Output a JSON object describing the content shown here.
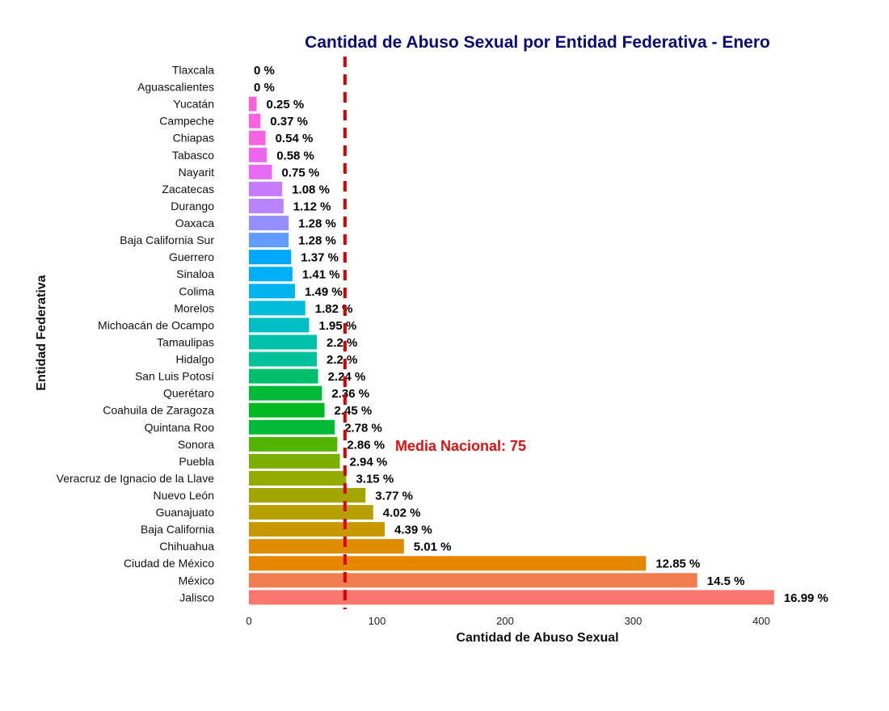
{
  "colors": {
    "title": "#0a0a7a",
    "mean_line": "#dd0000",
    "mean_text": "#dd1111"
  },
  "chart_data": {
    "type": "bar",
    "orientation": "horizontal",
    "title": "Cantidad de Abuso Sexual por Entidad Federativa - Enero",
    "xlabel": "Cantidad de Abuso Sexual",
    "ylabel": "Entidad Federativa",
    "xlim": [
      0,
      410
    ],
    "x_ticks": [
      0,
      100,
      200,
      300,
      400
    ],
    "grid": false,
    "legend": "none",
    "mean": {
      "value": 75,
      "label": "Media Nacional:  75"
    },
    "categories": [
      "Tlaxcala",
      "Aguascalientes",
      "Yucatán",
      "Campeche",
      "Chiapas",
      "Tabasco",
      "Nayarit",
      "Zacatecas",
      "Durango",
      "Oaxaca",
      "Baja California Sur",
      "Guerrero",
      "Sinaloa",
      "Colima",
      "Morelos",
      "Michoacán de Ocampo",
      "Tamaulipas",
      "Hidalgo",
      "San Luis Potosí",
      "Querétaro",
      "Coahuila de Zaragoza",
      "Quintana Roo",
      "Sonora",
      "Puebla",
      "Veracruz de Ignacio de la Llave",
      "Nuevo León",
      "Guanajuato",
      "Baja California",
      "Chihuahua",
      "Ciudad de México",
      "México",
      "Jalisco"
    ],
    "values": [
      0,
      0,
      6,
      9,
      13,
      14,
      18,
      26,
      27,
      31,
      31,
      33,
      34,
      36,
      44,
      47,
      53,
      53,
      54,
      57,
      59,
      67,
      69,
      71,
      76,
      91,
      97,
      106,
      121,
      310,
      350,
      410
    ],
    "labels": [
      "0 %",
      "0 %",
      "0.25 %",
      "0.37 %",
      "0.54 %",
      "0.58 %",
      "0.75 %",
      "1.08 %",
      "1.12 %",
      "1.28 %",
      "1.28 %",
      "1.37 %",
      "1.41 %",
      "1.49 %",
      "1.82 %",
      "1.95 %",
      "2.2 %",
      "2.2 %",
      "2.24 %",
      "2.36 %",
      "2.45 %",
      "2.78 %",
      "2.86 %",
      "2.94 %",
      "3.15 %",
      "3.77 %",
      "4.02 %",
      "4.39 %",
      "5.01 %",
      "12.85 %",
      "14.5 %",
      "16.99 %"
    ],
    "bar_colors": [
      "#FF64B0",
      "#FF64B0",
      "#FB61D7",
      "#F763E0",
      "#F564E3",
      "#EB66EC",
      "#E76BF3",
      "#C77CFF",
      "#B983FF",
      "#9590FF",
      "#619CFF",
      "#00A9FF",
      "#00B0F6",
      "#00B4F0",
      "#00BCD8",
      "#00BFC4",
      "#00C1AA",
      "#00C19A",
      "#00BE6C",
      "#00BA38",
      "#00B81F",
      "#00BA38",
      "#53B400",
      "#7CAE00",
      "#93AA00",
      "#A3A500",
      "#B79F00",
      "#C99800",
      "#DE8C00",
      "#E58700",
      "#F07E4F",
      "#F8766D"
    ]
  }
}
